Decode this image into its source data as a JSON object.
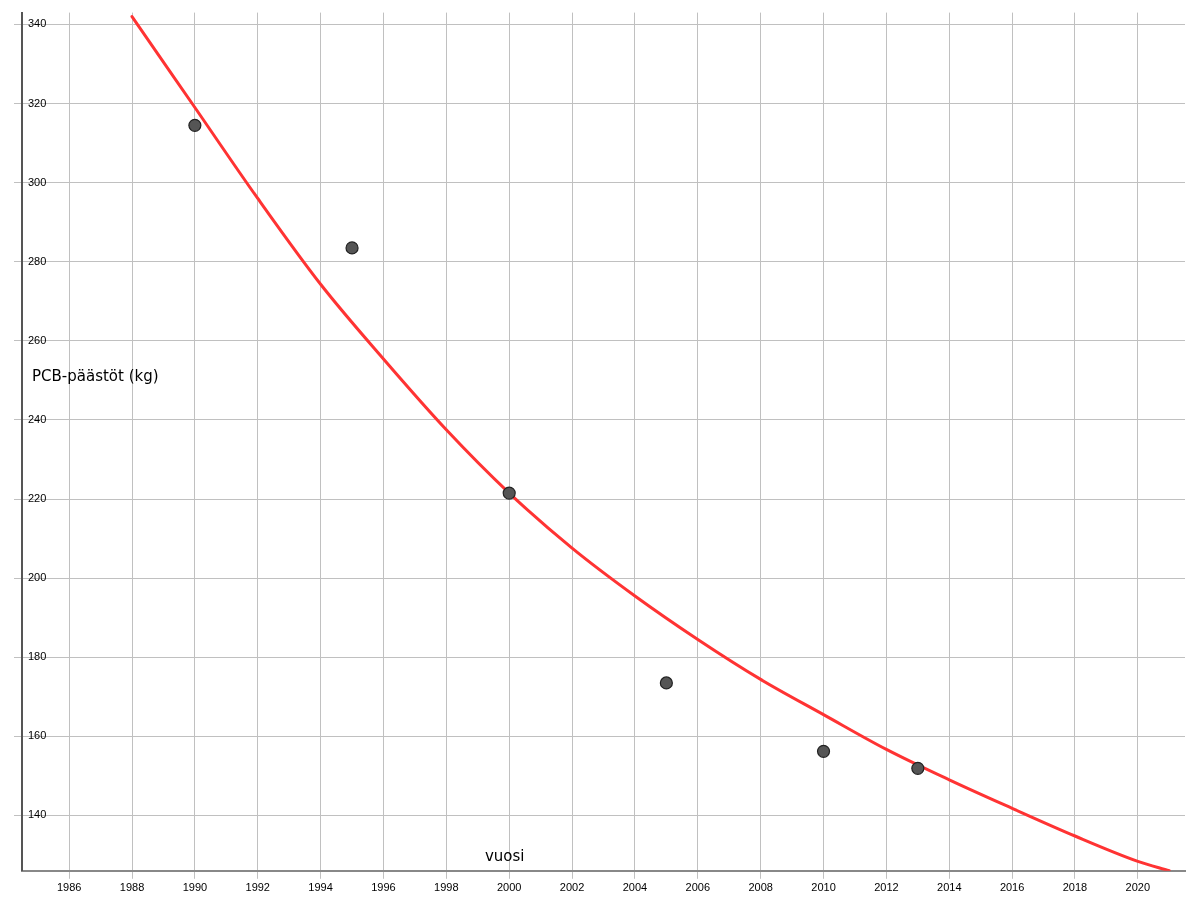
{
  "chart_data": {
    "type": "scatter",
    "xlabel": "vuosi",
    "ylabel": "PCB-päästöt (kg)",
    "xlim": [
      1984.5,
      2021.5
    ],
    "ylim": [
      126,
      343
    ],
    "xticks": [
      1986,
      1988,
      1990,
      1992,
      1994,
      1996,
      1998,
      2000,
      2002,
      2004,
      2006,
      2008,
      2010,
      2012,
      2014,
      2016,
      2018,
      2020
    ],
    "yticks": [
      140,
      160,
      180,
      200,
      220,
      240,
      260,
      280,
      300,
      320,
      340
    ],
    "grid": true,
    "legend": false,
    "marker": "circle",
    "series": [
      {
        "type": "scatter",
        "color": "#555555",
        "x": [
          1990,
          1995,
          2000,
          2005,
          2010,
          2013
        ],
        "values": [
          314.5,
          283.5,
          221.5,
          173.5,
          156.2,
          151.9
        ]
      },
      {
        "type": "line",
        "color": "#ff3333",
        "line_style": "solid",
        "marker": "none",
        "x": [
          1988,
          1990,
          1992,
          1994,
          1996,
          1998,
          2000,
          2002,
          2004,
          2006,
          2008,
          2010,
          2012,
          2014,
          2016,
          2018,
          2020,
          2021
        ],
        "values": [
          342,
          319,
          296,
          274.3,
          255.4,
          237.5,
          221.5,
          207.6,
          195.5,
          184.5,
          174.4,
          165.5,
          156.7,
          149,
          141.8,
          134.8,
          128.4,
          126
        ]
      }
    ]
  }
}
